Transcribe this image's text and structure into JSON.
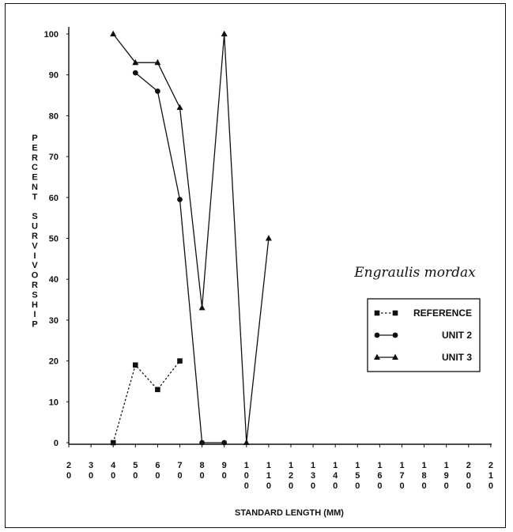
{
  "chart_data": {
    "type": "line",
    "xlabel": "STANDARD LENGTH (MM)",
    "ylabel": "PERCENT SURVIVORSHIP",
    "x_ticks": [
      "20",
      "30",
      "40",
      "50",
      "60",
      "70",
      "80",
      "90",
      "100",
      "110",
      "120",
      "130",
      "140",
      "150",
      "160",
      "170",
      "180",
      "190",
      "200",
      "210"
    ],
    "y_ticks": [
      0,
      10,
      20,
      30,
      40,
      50,
      60,
      70,
      80,
      90,
      100
    ],
    "ylim": [
      0,
      100
    ],
    "grid": false,
    "legend_position": "right",
    "annotation": "Engraulis mordax",
    "series": [
      {
        "name": "REFERENCE",
        "line_style": "dotted",
        "marker": "square",
        "points": [
          {
            "x": 40,
            "y": 0
          },
          {
            "x": 50,
            "y": 19
          },
          {
            "x": 60,
            "y": 13
          },
          {
            "x": 70,
            "y": 20
          }
        ]
      },
      {
        "name": "UNIT 2",
        "line_style": "solid",
        "marker": "circle",
        "points": [
          {
            "x": 50,
            "y": 90.5
          },
          {
            "x": 60,
            "y": 86
          },
          {
            "x": 70,
            "y": 59.5
          },
          {
            "x": 80,
            "y": 0
          },
          {
            "x": 90,
            "y": 0
          }
        ]
      },
      {
        "name": "UNIT 3",
        "line_style": "solid",
        "marker": "triangle",
        "points": [
          {
            "x": 40,
            "y": 100
          },
          {
            "x": 50,
            "y": 93
          },
          {
            "x": 60,
            "y": 93
          },
          {
            "x": 70,
            "y": 82
          },
          {
            "x": 80,
            "y": 33
          },
          {
            "x": 90,
            "y": 100
          },
          {
            "x": 100,
            "y": 0
          },
          {
            "x": 110,
            "y": 50
          }
        ]
      }
    ]
  }
}
